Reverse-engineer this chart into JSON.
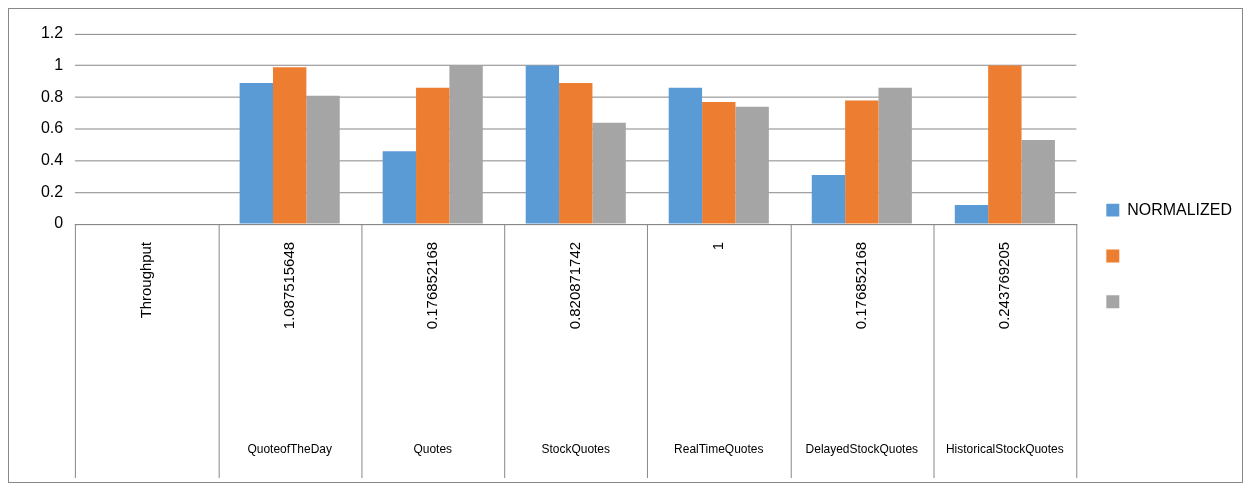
{
  "chart_data": {
    "type": "bar",
    "categories": [
      "Throughput",
      "1.087515648",
      "0.176852168",
      "0.820871742",
      "1",
      "0.176852168",
      "0.243769205"
    ],
    "annotations": [
      null,
      "QuoteofTheDay",
      "Quotes",
      "StockQuotes",
      "RealTimeQuotes",
      "DelayedStockQuotes",
      "HistoricalStockQuotes"
    ],
    "series": [
      {
        "name": "NORMALIZED",
        "color": "#5b9bd5",
        "values": [
          null,
          0.89,
          0.46,
          1.0,
          0.86,
          0.31,
          0.12
        ]
      },
      {
        "color": "#ed7d31",
        "values": [
          null,
          0.99,
          0.86,
          0.89,
          0.77,
          0.78,
          1.0
        ]
      },
      {
        "color": "#a5a5a5",
        "values": [
          null,
          0.81,
          1.0,
          0.64,
          0.74,
          0.86,
          0.53
        ]
      }
    ],
    "ylim": [
      0,
      1.2
    ],
    "yticks": [
      0,
      0.2,
      0.4,
      0.6,
      0.8,
      1,
      1.2
    ],
    "grid": "y",
    "legend": "right"
  }
}
